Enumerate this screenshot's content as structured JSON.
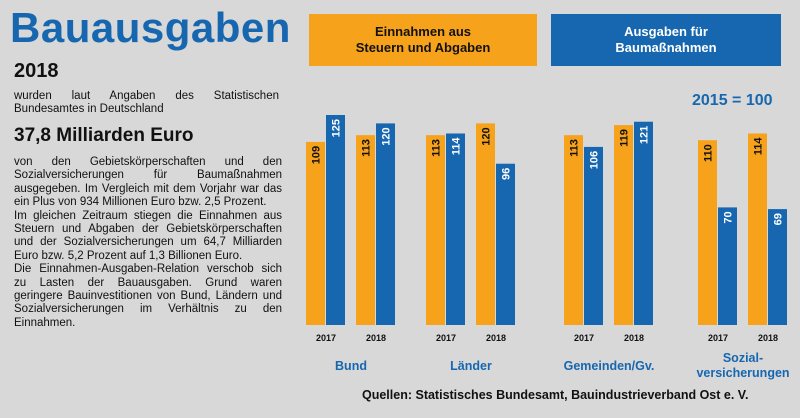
{
  "title": "Bauausgaben",
  "year": "2018",
  "intro": "wurden laut Angaben des Statistischen Bundesamtes in Deutschland",
  "amount": "37,8 Milliarden Euro",
  "paragraphs": [
    "von den Gebietskörperschaften und den Sozialversicherungen für Baumaßnahmen ausgegeben. Im Vergleich mit dem Vorjahr war das ein Plus von 934 Millionen Euro bzw. 2,5 Prozent.",
    "Im gleichen Zeitraum stiegen die Einnahmen aus Steuern und Abgaben der Gebietskörperschaften und der Sozialversicherungen um 64,7 Milliarden Euro bzw. 5,2 Prozent auf 1,3 Billionen Euro.",
    "Die Einnahmen-Ausgaben-Relation verschob sich zu Lasten der Bauausgaben. Grund waren geringere Bauinvestitionen von Bund, Ländern und Sozialversicherungen im Verhältnis zu den Einnahmen."
  ],
  "legend": {
    "income": "Einnahmen aus\nSteuern und Abgaben",
    "spending": "Ausgaben für\nBaumaßnahmen"
  },
  "base_note": "2015 = 100",
  "source": "Quellen: Statistisches Bundesamt, Bauindustrieverband Ost e. V.",
  "colors": {
    "income": "#f7a21b",
    "spending": "#1767b0",
    "background": "#d8d8d8"
  },
  "chart_data": {
    "type": "bar",
    "years": [
      "2017",
      "2018"
    ],
    "categories": [
      "Bund",
      "Länder",
      "Gemeinden/Gv.",
      "Sozial-\nversicherungen"
    ],
    "series": [
      {
        "name": "Einnahmen aus Steuern und Abgaben",
        "key": "income",
        "values": {
          "2017": [
            109,
            113,
            113,
            110
          ],
          "2018": [
            113,
            120,
            119,
            114
          ]
        }
      },
      {
        "name": "Ausgaben für Baumaßnahmen",
        "key": "spending",
        "values": {
          "2017": [
            125,
            114,
            106,
            70
          ],
          "2018": [
            120,
            96,
            121,
            69
          ]
        }
      }
    ],
    "ylim": [
      0,
      130
    ]
  }
}
